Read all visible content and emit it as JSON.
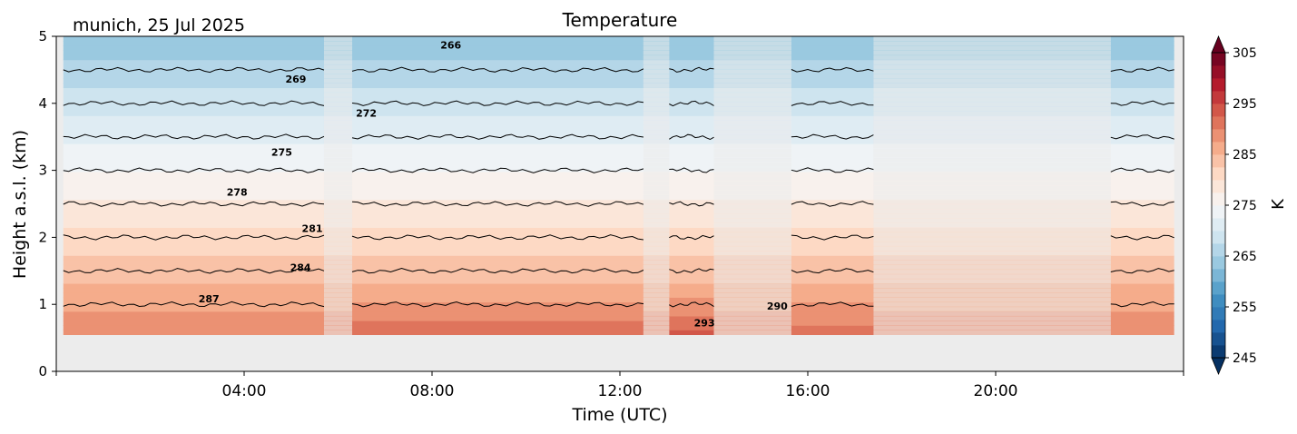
{
  "header": {
    "location_date": "munich, 25 Jul 2025",
    "title": "Temperature"
  },
  "chart_data": {
    "type": "heatmap",
    "title": "Temperature",
    "subtitle": "munich, 25 Jul 2025",
    "xlabel": "Time (UTC)",
    "ylabel": "Height a.s.l. (km)",
    "xlim_hours": [
      0,
      24
    ],
    "ylim": [
      0,
      5
    ],
    "x_ticks": [
      {
        "value": 4,
        "label": "04:00"
      },
      {
        "value": 8,
        "label": "08:00"
      },
      {
        "value": 12,
        "label": "12:00"
      },
      {
        "value": 16,
        "label": "16:00"
      },
      {
        "value": 20,
        "label": "20:00"
      }
    ],
    "y_ticks": [
      {
        "value": 0,
        "label": "0"
      },
      {
        "value": 1,
        "label": "1"
      },
      {
        "value": 2,
        "label": "2"
      },
      {
        "value": 3,
        "label": "3"
      },
      {
        "value": 4,
        "label": "4"
      },
      {
        "value": 5,
        "label": "5"
      }
    ],
    "data_bottom_km": 0.55,
    "colorbar": {
      "label": "K",
      "min": 245,
      "max": 305,
      "step": 2.5,
      "extend": "both",
      "ticks": [
        {
          "value": 245,
          "label": "245"
        },
        {
          "value": 255,
          "label": "255"
        },
        {
          "value": 265,
          "label": "265"
        },
        {
          "value": 275,
          "label": "275"
        },
        {
          "value": 285,
          "label": "285"
        },
        {
          "value": 295,
          "label": "295"
        },
        {
          "value": 305,
          "label": "305"
        }
      ],
      "colormap": "RdBu_r"
    },
    "temperature_profile": {
      "heights_km": [
        0.55,
        1.0,
        1.5,
        2.0,
        2.5,
        3.0,
        3.5,
        4.0,
        4.5,
        5.0
      ],
      "temps_K": [
        289.5,
        287.0,
        284.0,
        281.0,
        278.0,
        275.0,
        272.0,
        269.0,
        266.0,
        263.0
      ]
    },
    "time_segments": [
      {
        "start": 0.15,
        "end": 5.7,
        "type": "measured",
        "surface_K": 289.5
      },
      {
        "start": 5.7,
        "end": 6.3,
        "type": "model"
      },
      {
        "start": 6.3,
        "end": 12.5,
        "type": "measured",
        "surface_K": 291.5
      },
      {
        "start": 12.5,
        "end": 13.05,
        "type": "model"
      },
      {
        "start": 13.05,
        "end": 14.0,
        "type": "measured",
        "surface_K": 293.0
      },
      {
        "start": 14.0,
        "end": 15.65,
        "type": "model"
      },
      {
        "start": 15.65,
        "end": 17.4,
        "type": "measured",
        "surface_K": 291.0
      },
      {
        "start": 17.4,
        "end": 22.45,
        "type": "model"
      },
      {
        "start": 22.45,
        "end": 23.8,
        "type": "measured",
        "surface_K": 289.5
      }
    ],
    "isotherm_levels": [
      266,
      269,
      272,
      275,
      278,
      281,
      284,
      287,
      290,
      293
    ],
    "contour_labels": [
      {
        "text": "266",
        "x": 8.4,
        "y": 4.82
      },
      {
        "text": "269",
        "x": 5.1,
        "y": 4.31
      },
      {
        "text": "272",
        "x": 6.6,
        "y": 3.8
      },
      {
        "text": "275",
        "x": 4.8,
        "y": 3.22
      },
      {
        "text": "278",
        "x": 3.85,
        "y": 2.62
      },
      {
        "text": "281",
        "x": 5.45,
        "y": 2.08
      },
      {
        "text": "284",
        "x": 5.2,
        "y": 1.5
      },
      {
        "text": "287",
        "x": 3.25,
        "y": 1.03
      },
      {
        "text": "290",
        "x": 15.35,
        "y": 0.92
      },
      {
        "text": "293",
        "x": 13.8,
        "y": 0.67
      }
    ]
  }
}
